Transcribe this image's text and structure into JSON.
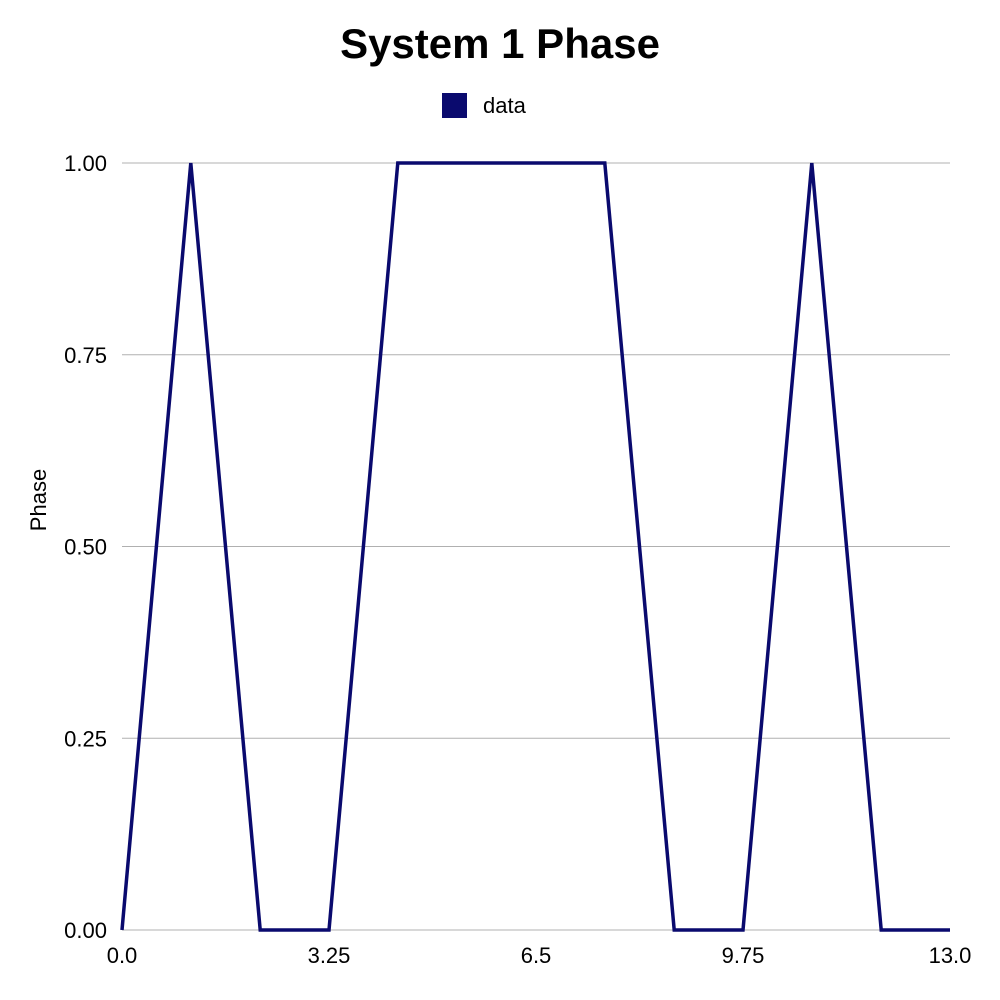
{
  "chart_data": {
    "type": "line",
    "title": "System 1 Phase",
    "xlabel": "",
    "ylabel": "Phase",
    "xlim": [
      0.0,
      13.0
    ],
    "ylim": [
      0.0,
      1.0
    ],
    "x_ticks": [
      "0.0",
      "3.25",
      "6.5",
      "9.75",
      "13.0"
    ],
    "x_tick_values": [
      0.0,
      3.25,
      6.5,
      9.75,
      13.0
    ],
    "y_ticks": [
      "0.00",
      "0.25",
      "0.50",
      "0.75",
      "1.00"
    ],
    "y_tick_values": [
      0.0,
      0.25,
      0.5,
      0.75,
      1.0
    ],
    "grid": true,
    "legend_position": "top-center",
    "series": [
      {
        "name": "data",
        "color": "#0a0a6e",
        "x": [
          0,
          1.08,
          2.17,
          3.25,
          4.33,
          7.58,
          8.67,
          9.75,
          10.83,
          11.92,
          13.0
        ],
        "y": [
          0,
          1,
          0,
          0,
          1,
          1,
          0,
          0,
          1,
          0,
          0
        ]
      }
    ]
  }
}
